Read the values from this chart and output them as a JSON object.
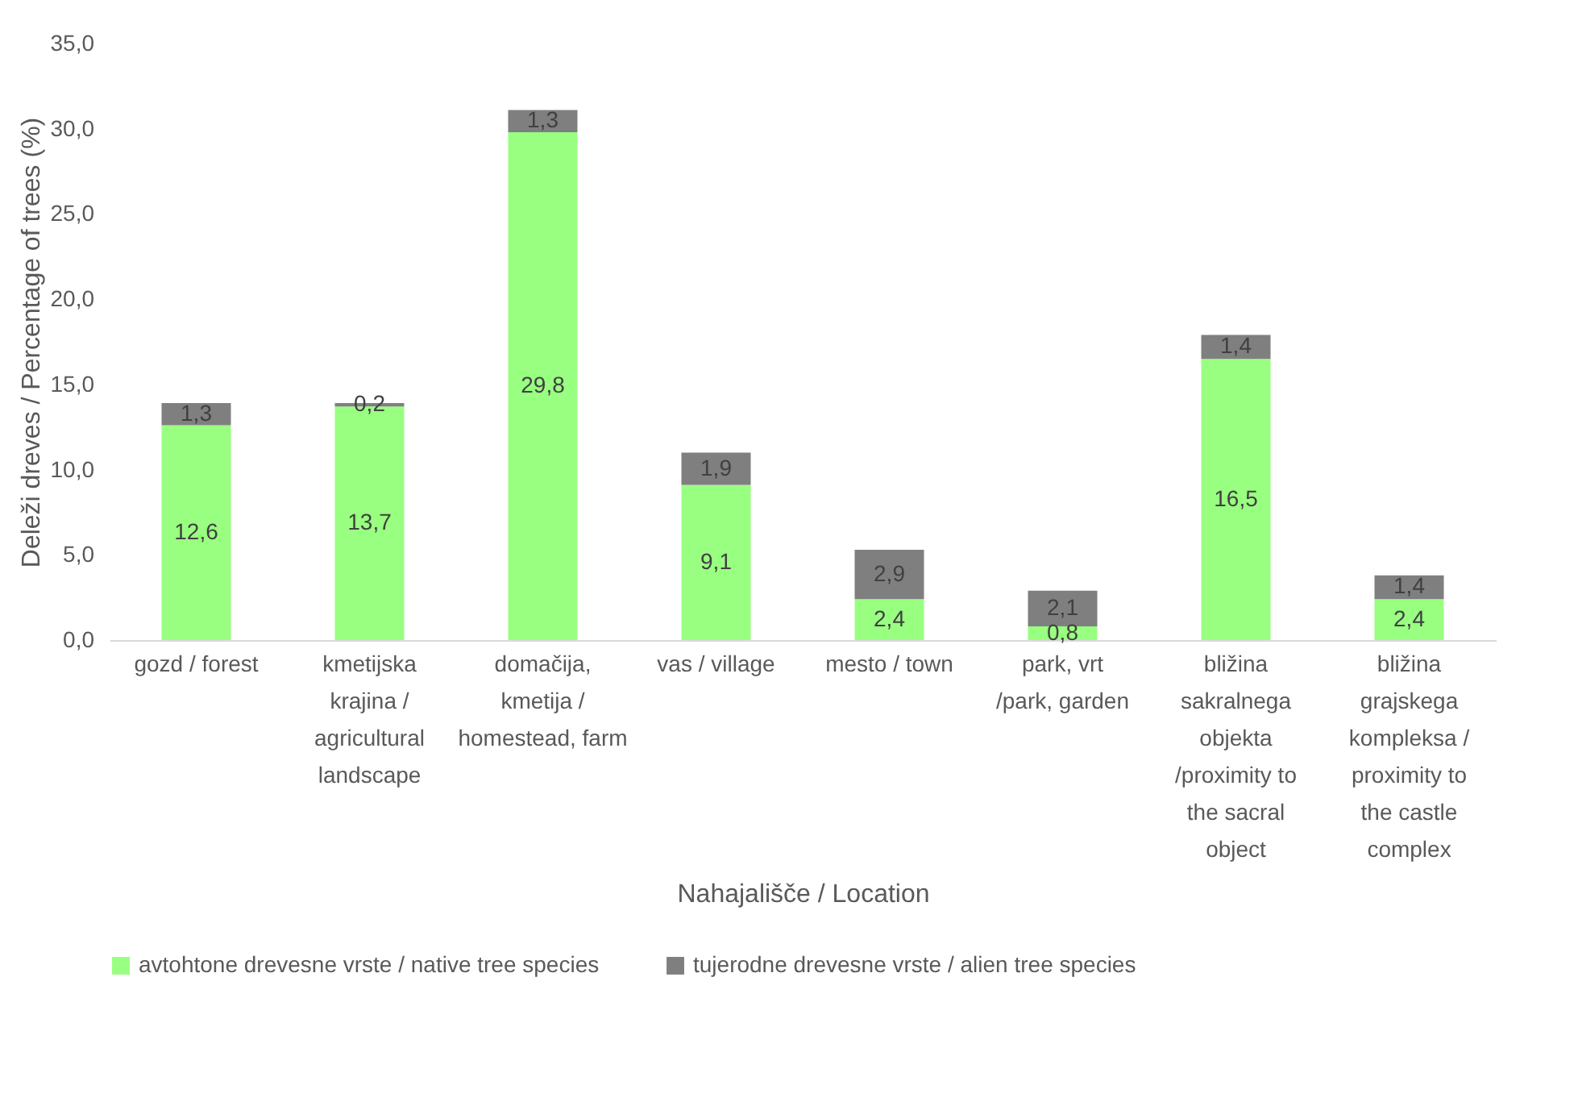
{
  "chart_data": {
    "type": "bar",
    "stacked": true,
    "xlabel": "Nahajališče / Location",
    "ylabel": "Deleži dreves / Percentage of trees (%)",
    "categories": [
      "gozd / forest",
      "kmetijska krajina / agricultural landscape",
      "domačija, kmetija / homestead, farm",
      "vas / village",
      "mesto / town",
      "park, vrt /park, garden",
      "bližina sakralnega objekta /proximity to the sacral object",
      "bližina grajskega kompleksa / proximity to the castle complex"
    ],
    "series": [
      {
        "name": "avtohtone drevesne vrste / native tree species",
        "color": "#99ff80",
        "values": [
          12.6,
          13.7,
          29.8,
          9.1,
          2.4,
          0.8,
          16.5,
          2.4
        ],
        "value_labels": [
          "12,6",
          "13,7",
          "29,8",
          "9,1",
          "2,4",
          "0,8",
          "16,5",
          "2,4"
        ]
      },
      {
        "name": "tujerodne drevesne vrste / alien tree species",
        "color": "#7f7f7f",
        "values": [
          1.3,
          0.2,
          1.3,
          1.9,
          2.9,
          2.1,
          1.4,
          1.4
        ],
        "value_labels": [
          "1,3",
          "0,2",
          "1,3",
          "1,9",
          "2,9",
          "2,1",
          "1,4",
          "1,4"
        ]
      }
    ],
    "ylim": [
      0,
      35
    ],
    "yticks": [
      {
        "value": 0,
        "label": "0,0"
      },
      {
        "value": 5,
        "label": "5,0"
      },
      {
        "value": 10,
        "label": "10,0"
      },
      {
        "value": 15,
        "label": "15,0"
      },
      {
        "value": 20,
        "label": "20,0"
      },
      {
        "value": 25,
        "label": "25,0"
      },
      {
        "value": 30,
        "label": "30,0"
      },
      {
        "value": 35,
        "label": "35,0"
      }
    ],
    "legend": "bottom"
  }
}
